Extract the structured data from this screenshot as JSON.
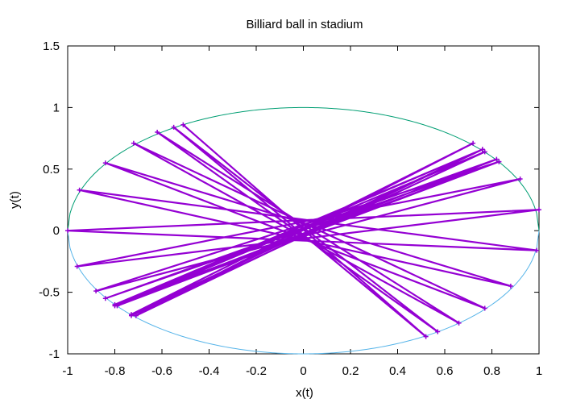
{
  "chart_data": {
    "type": "line",
    "title": "Billiard ball in stadium",
    "xlabel": "x(t)",
    "ylabel": "y(t)",
    "xlim": [
      -1,
      1
    ],
    "ylim": [
      -1,
      1.5
    ],
    "xticks": [
      "-1",
      "-0.8",
      "-0.6",
      "-0.4",
      "-0.2",
      "0",
      "0.2",
      "0.4",
      "0.6",
      "0.8",
      "1"
    ],
    "yticks": [
      "-1",
      "-0.5",
      "0",
      "0.5",
      "1",
      "1.5"
    ],
    "xtick_values": [
      -1,
      -0.8,
      -0.6,
      -0.4,
      -0.2,
      0,
      0.2,
      0.4,
      0.6,
      0.8,
      1
    ],
    "ytick_values": [
      -1,
      -0.5,
      0,
      0.5,
      1,
      1.5
    ],
    "grid": false,
    "legend": "none",
    "colors": {
      "boundary_top": "#009e73",
      "boundary_bottom": "#56b4e9",
      "trajectory": "#9400d3"
    },
    "series": [
      {
        "kind": "boundary-upper",
        "x": [
          -1,
          -0.9,
          -0.8,
          -0.7,
          -0.6,
          -0.5,
          -0.4,
          -0.3,
          -0.2,
          -0.1,
          0,
          0.1,
          0.2,
          0.3,
          0.4,
          0.5,
          0.6,
          0.7,
          0.8,
          0.9,
          1
        ],
        "y": [
          0,
          0.436,
          0.6,
          0.714,
          0.8,
          0.866,
          0.917,
          0.954,
          0.98,
          0.995,
          1,
          0.995,
          0.98,
          0.954,
          0.917,
          0.866,
          0.8,
          0.714,
          0.6,
          0.436,
          0
        ]
      },
      {
        "kind": "boundary-lower",
        "x": [
          -1,
          -0.9,
          -0.8,
          -0.7,
          -0.6,
          -0.5,
          -0.4,
          -0.3,
          -0.2,
          -0.1,
          0,
          0.1,
          0.2,
          0.3,
          0.4,
          0.5,
          0.6,
          0.7,
          0.8,
          0.9,
          1
        ],
        "y": [
          0,
          -0.436,
          -0.6,
          -0.714,
          -0.8,
          -0.866,
          -0.917,
          -0.954,
          -0.98,
          -0.995,
          -1,
          -0.995,
          -0.98,
          -0.954,
          -0.917,
          -0.866,
          -0.8,
          -0.714,
          -0.6,
          -0.436,
          0
        ]
      },
      {
        "kind": "trajectory",
        "x": [
          -0.51,
          0.52,
          -0.55,
          0.57,
          -0.62,
          0.66,
          -0.72,
          0.77,
          -0.84,
          0.88,
          -0.95,
          0.99,
          -1.0,
          1.0,
          -0.96,
          0.92,
          -0.88,
          0.83,
          -0.8,
          0.76,
          -0.73,
          0.72,
          -0.71,
          0.76,
          -0.8,
          0.82,
          -0.84,
          0.83,
          -0.79,
          0.77,
          -0.73
        ],
        "y": [
          0.86,
          -0.86,
          0.84,
          -0.82,
          0.8,
          -0.75,
          0.71,
          -0.63,
          0.55,
          -0.45,
          0.33,
          -0.16,
          0.0,
          0.17,
          -0.29,
          0.42,
          -0.49,
          0.56,
          -0.6,
          0.66,
          -0.68,
          0.71,
          -0.69,
          0.66,
          -0.61,
          0.58,
          -0.55,
          0.56,
          -0.61,
          0.64,
          -0.69
        ]
      }
    ]
  }
}
